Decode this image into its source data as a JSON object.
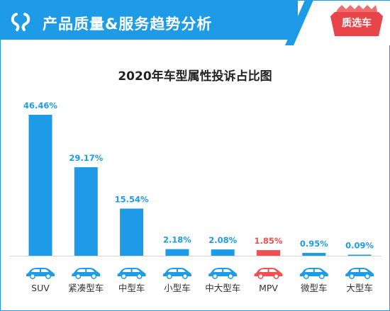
{
  "header": {
    "title": "产品质量&服务趋势分析",
    "badge": "质选车",
    "logo_icon": "brand-logo-icon",
    "accent": "#1e9be6",
    "badge_color": "#e8454a"
  },
  "chart_data": {
    "type": "bar",
    "title": "2020年车型属性投诉占比图",
    "categories": [
      "SUV",
      "紧凑型车",
      "中型车",
      "小型车",
      "中大型车",
      "MPV",
      "微型车",
      "大型车"
    ],
    "values": [
      46.46,
      29.17,
      15.54,
      2.18,
      2.08,
      1.85,
      0.95,
      0.09
    ],
    "value_labels": [
      "46.46%",
      "29.17%",
      "15.54%",
      "2.18%",
      "2.08%",
      "1.85%",
      "0.95%",
      "0.09%"
    ],
    "unit": "%",
    "ylim": [
      0,
      46.46
    ],
    "grid": false,
    "legend": "none",
    "bar_color": "#1e9be6",
    "highlight_category": "MPV",
    "highlight_color": "#f0504f",
    "category_icon": "car-icon"
  }
}
